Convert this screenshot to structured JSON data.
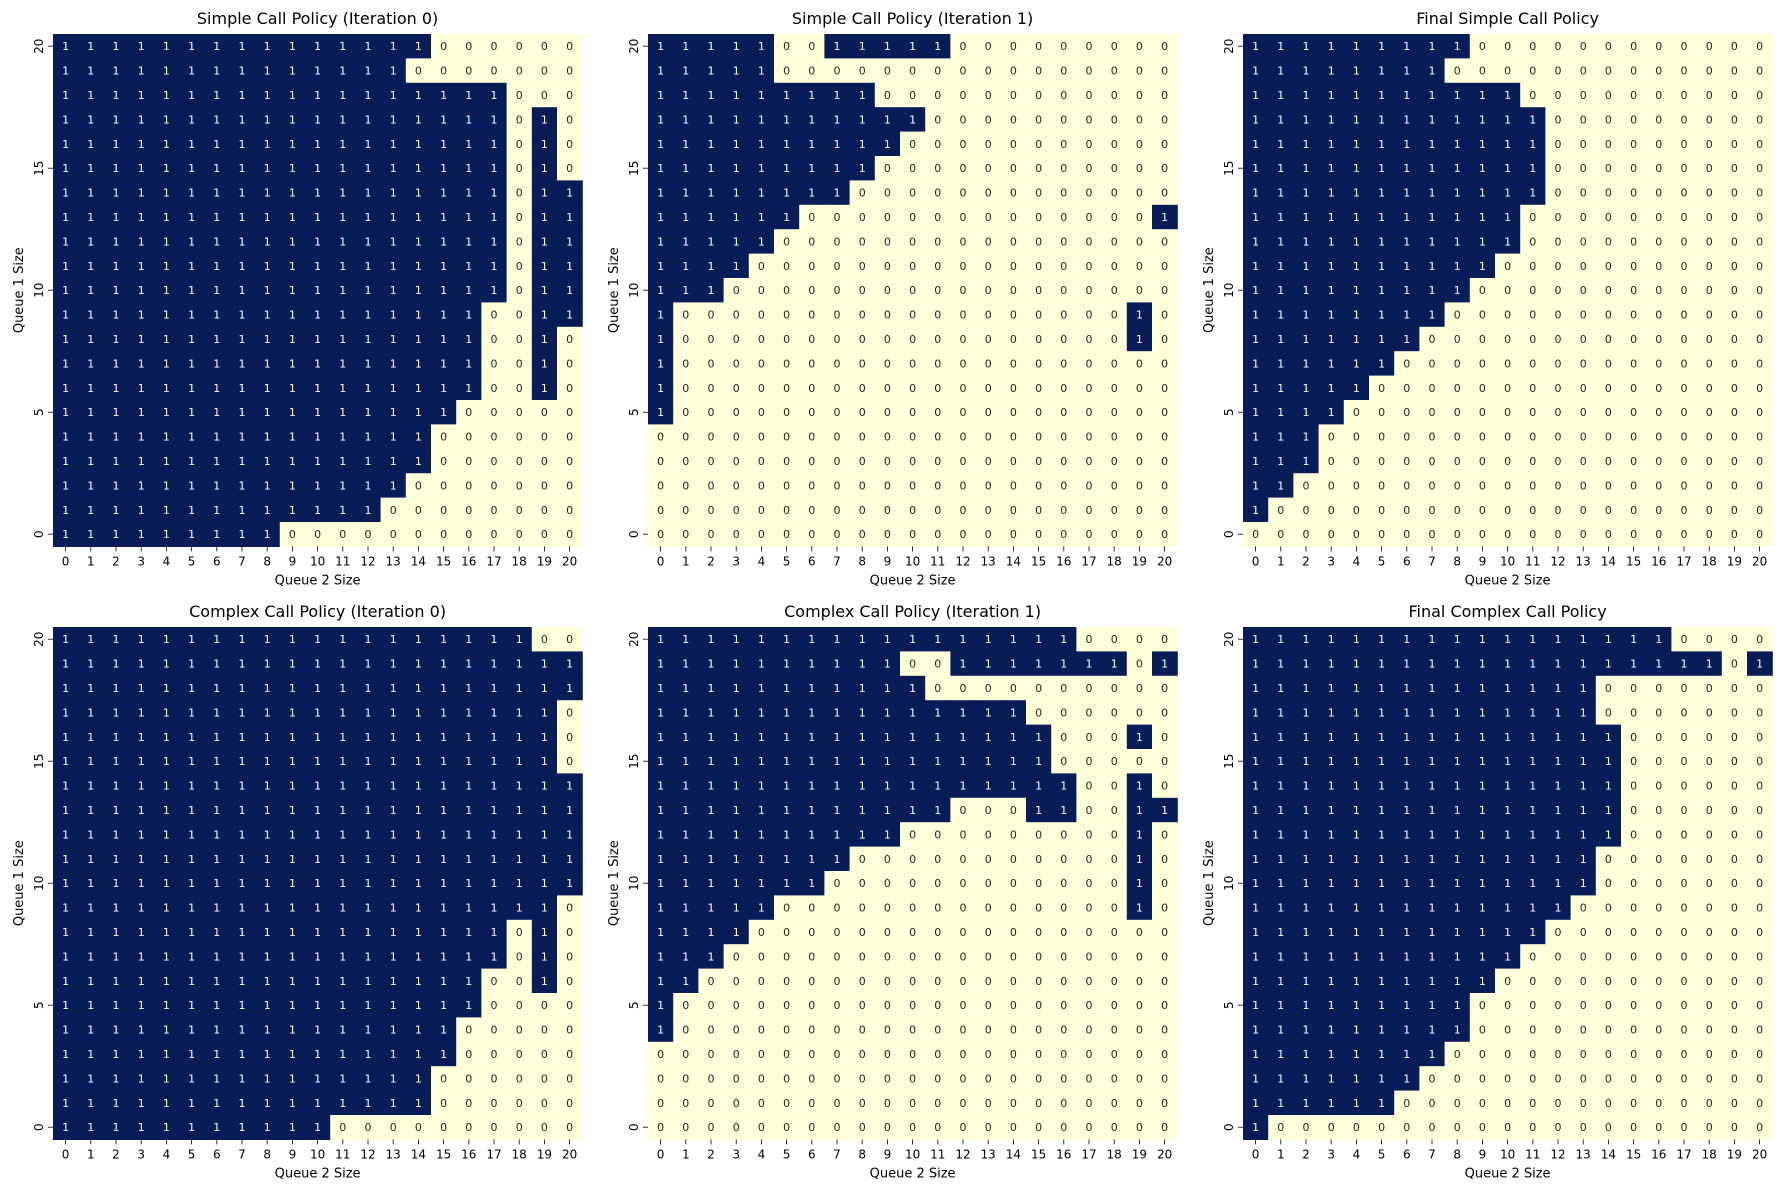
{
  "colors": {
    "one": "#081d58",
    "zero": "#ffffd9",
    "text_on_one": "#ffffff",
    "text_on_zero": "#262626"
  },
  "chart_data": [
    {
      "type": "heatmap",
      "title": "Simple Call Policy (Iteration 0)",
      "xlabel": "Queue 2 Size",
      "ylabel": "Queue 1 Size",
      "x_ticks": [
        "0",
        "1",
        "2",
        "3",
        "4",
        "5",
        "6",
        "7",
        "8",
        "9",
        "10",
        "11",
        "12",
        "13",
        "14",
        "15",
        "16",
        "17",
        "18",
        "19",
        "20"
      ],
      "y_ticks": [
        "20",
        "15",
        "10",
        "5",
        "0"
      ],
      "rows_top_to_bottom": [
        "111111111111111000000",
        "111111111111110000000",
        "111111111111111111000",
        "111111111111111111010",
        "111111111111111111010",
        "111111111111111111010",
        "111111111111111111011",
        "111111111111111111011",
        "111111111111111111011",
        "111111111111111111011",
        "111111111111111111011",
        "111111111111111110011",
        "111111111111111110010",
        "111111111111111110010",
        "111111111111111110010",
        "111111111111111100000",
        "111111111111111000000",
        "111111111111111000000",
        "111111111111110000000",
        "111111111111100000000",
        "111111111000000000000"
      ],
      "annotations": "cell value (0 or 1)",
      "colorbar": false
    },
    {
      "type": "heatmap",
      "title": "Simple Call Policy (Iteration 1)",
      "xlabel": "Queue 2 Size",
      "ylabel": "Queue 1 Size",
      "x_ticks": [
        "0",
        "1",
        "2",
        "3",
        "4",
        "5",
        "6",
        "7",
        "8",
        "9",
        "10",
        "11",
        "12",
        "13",
        "14",
        "15",
        "16",
        "17",
        "18",
        "19",
        "20"
      ],
      "y_ticks": [
        "20",
        "15",
        "10",
        "5",
        "0"
      ],
      "rows_top_to_bottom": [
        "111110011111000000000",
        "111110000000000000000",
        "111111111000000000000",
        "111111111110000000000",
        "111111111100000000000",
        "111111111000000000000",
        "111111110000000000000",
        "111111000000000000001",
        "111110000000000000000",
        "111100000000000000000",
        "111000000000000000000",
        "100000000000000000010",
        "100000000000000000010",
        "100000000000000000000",
        "100000000000000000000",
        "100000000000000000000",
        "000000000000000000000",
        "000000000000000000000",
        "000000000000000000000",
        "000000000000000000000",
        "000000000000000000000"
      ],
      "annotations": "cell value (0 or 1)",
      "colorbar": false
    },
    {
      "type": "heatmap",
      "title": "Final Simple Call Policy",
      "xlabel": "Queue 2 Size",
      "ylabel": "Queue 1 Size",
      "x_ticks": [
        "0",
        "1",
        "2",
        "3",
        "4",
        "5",
        "6",
        "7",
        "8",
        "9",
        "10",
        "11",
        "12",
        "13",
        "14",
        "15",
        "16",
        "17",
        "18",
        "19",
        "20"
      ],
      "y_ticks": [
        "20",
        "15",
        "10",
        "5",
        "0"
      ],
      "rows_top_to_bottom": [
        "111111111000000000000",
        "111111110000000000000",
        "111111111110000000000",
        "111111111111000000000",
        "111111111111000000000",
        "111111111111000000000",
        "111111111111000000000",
        "111111111110000000000",
        "111111111110000000000",
        "111111111100000000000",
        "111111111000000000000",
        "111111110000000000000",
        "111111100000000000000",
        "111111000000000000000",
        "111110000000000000000",
        "111100000000000000000",
        "111000000000000000000",
        "111000000000000000000",
        "110000000000000000000",
        "100000000000000000000",
        "000000000000000000000"
      ],
      "annotations": "cell value (0 or 1)",
      "colorbar": false
    },
    {
      "type": "heatmap",
      "title": "Complex Call Policy (Iteration 0)",
      "xlabel": "Queue 2 Size",
      "ylabel": "Queue 1 Size",
      "x_ticks": [
        "0",
        "1",
        "2",
        "3",
        "4",
        "5",
        "6",
        "7",
        "8",
        "9",
        "10",
        "11",
        "12",
        "13",
        "14",
        "15",
        "16",
        "17",
        "18",
        "19",
        "20"
      ],
      "y_ticks": [
        "20",
        "15",
        "10",
        "5",
        "0"
      ],
      "rows_top_to_bottom": [
        "111111111111111111100",
        "111111111111111111111",
        "111111111111111111111",
        "111111111111111111110",
        "111111111111111111110",
        "111111111111111111110",
        "111111111111111111111",
        "111111111111111111111",
        "111111111111111111111",
        "111111111111111111111",
        "111111111111111111111",
        "111111111111111111110",
        "111111111111111111010",
        "111111111111111111010",
        "111111111111111110010",
        "111111111111111110000",
        "111111111111111100000",
        "111111111111111100000",
        "111111111111111000000",
        "111111111111111000000",
        "111111111110000000000"
      ],
      "annotations": "cell value (0 or 1)",
      "colorbar": false
    },
    {
      "type": "heatmap",
      "title": "Complex Call Policy (Iteration 1)",
      "xlabel": "Queue 2 Size",
      "ylabel": "Queue 1 Size",
      "x_ticks": [
        "0",
        "1",
        "2",
        "3",
        "4",
        "5",
        "6",
        "7",
        "8",
        "9",
        "10",
        "11",
        "12",
        "13",
        "14",
        "15",
        "16",
        "17",
        "18",
        "19",
        "20"
      ],
      "y_ticks": [
        "20",
        "15",
        "10",
        "5",
        "0"
      ],
      "rows_top_to_bottom": [
        "111111111111111110000",
        "111111111100111111101",
        "111111111110000000000",
        "111111111111111000000",
        "111111111111111100010",
        "111111111111111100000",
        "111111111111111110010",
        "111111111111000110011",
        "111111111100000000010",
        "111111110000000000010",
        "111111100000000000010",
        "111110000000000000010",
        "111100000000000000000",
        "111000000000000000000",
        "110000000000000000000",
        "100000000000000000000",
        "100000000000000000000",
        "000000000000000000000",
        "000000000000000000000",
        "000000000000000000000",
        "000000000000000000000"
      ],
      "annotations": "cell value (0 or 1)",
      "colorbar": false
    },
    {
      "type": "heatmap",
      "title": "Final Complex Call Policy",
      "xlabel": "Queue 2 Size",
      "ylabel": "Queue 1 Size",
      "x_ticks": [
        "0",
        "1",
        "2",
        "3",
        "4",
        "5",
        "6",
        "7",
        "8",
        "9",
        "10",
        "11",
        "12",
        "13",
        "14",
        "15",
        "16",
        "17",
        "18",
        "19",
        "20"
      ],
      "y_ticks": [
        "20",
        "15",
        "10",
        "5",
        "0"
      ],
      "rows_top_to_bottom": [
        "111111111111111110000",
        "111111111111111111101",
        "111111111111110000000",
        "111111111111110000000",
        "111111111111111000000",
        "111111111111111000000",
        "111111111111111000000",
        "111111111111111000000",
        "111111111111111000000",
        "111111111111110000000",
        "111111111111110000000",
        "111111111111100000000",
        "111111111111000000000",
        "111111111110000000000",
        "111111111100000000000",
        "111111111000000000000",
        "111111111000000000000",
        "111111110000000000000",
        "111111100000000000000",
        "111111000000000000000",
        "100000000000000000000"
      ],
      "annotations": "cell value (0 or 1)",
      "colorbar": false
    }
  ]
}
